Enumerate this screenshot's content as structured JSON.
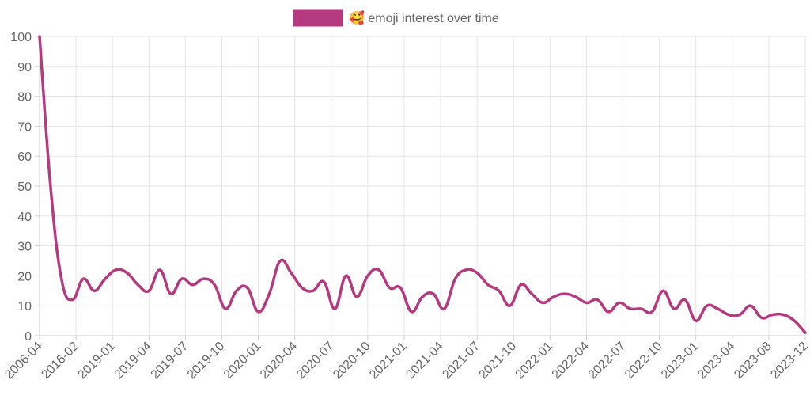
{
  "chart_data": {
    "type": "line",
    "title": "",
    "xlabel": "",
    "ylabel": "",
    "ylim": [
      0,
      100
    ],
    "y_ticks": [
      "0",
      "10",
      "20",
      "30",
      "40",
      "50",
      "60",
      "70",
      "80",
      "90",
      "100"
    ],
    "x_tick_labels": [
      "2006-04",
      "2016-02",
      "2019-01",
      "2019-04",
      "2019-07",
      "2019-10",
      "2020-01",
      "2020-04",
      "2020-07",
      "2020-10",
      "2021-01",
      "2021-04",
      "2021-07",
      "2021-10",
      "2022-01",
      "2022-04",
      "2022-07",
      "2022-10",
      "2023-01",
      "2023-04",
      "2023-08",
      "2023-12"
    ],
    "legend": {
      "label": "🥰 emoji interest over time",
      "position": "top"
    },
    "series": [
      {
        "name": "🥰 emoji interest over time",
        "color": "#b5397f",
        "values": [
          100,
          50,
          19,
          12,
          19,
          15,
          19,
          22,
          21,
          17,
          15,
          22,
          14,
          19,
          17,
          19,
          17,
          9,
          15,
          16,
          8,
          14,
          25,
          21,
          16,
          15,
          18,
          9,
          20,
          13,
          20,
          22,
          16,
          16,
          8,
          13,
          14,
          9,
          19,
          22,
          21,
          17,
          15,
          10,
          17,
          14,
          11,
          13,
          14,
          13,
          11,
          12,
          8,
          11,
          9,
          9,
          8,
          15,
          9,
          12,
          5,
          10,
          9,
          7,
          7,
          10,
          6,
          7,
          7,
          5,
          1
        ]
      }
    ]
  }
}
